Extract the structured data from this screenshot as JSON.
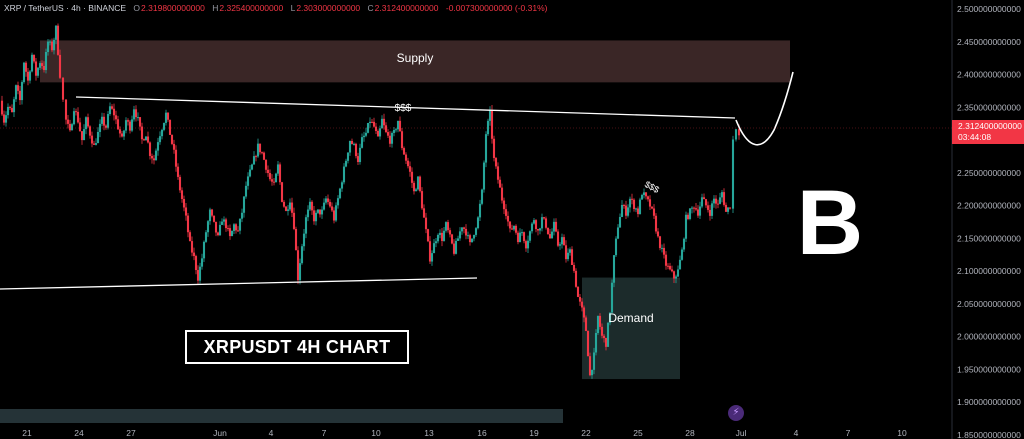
{
  "header": {
    "symbol": "XRP / TetherUS · 4h · BINANCE",
    "open_label": "O",
    "open": "2.319800000000",
    "high_label": "H",
    "high": "2.325400000000",
    "low_label": "L",
    "low": "2.303000000000",
    "close_label": "C",
    "close": "2.312400000000",
    "change": "-0.007300000000 (-0.31%)"
  },
  "price_tag": {
    "price": "2.312400000000",
    "countdown": "03:44:08"
  },
  "labels": {
    "supply": "Supply",
    "demand": "Demand",
    "liquidity_top": "$$$",
    "liquidity_mid": "$$$",
    "chart_title": "XRPUSDT 4H CHART",
    "logo": "B"
  },
  "colors": {
    "up": "#26a69a",
    "down": "#f23645",
    "supply_zone": "#3a2626",
    "demand_zone": "#1c2b2b",
    "background": "#000000"
  },
  "chart_data": {
    "type": "candlestick",
    "symbol": "XRP / TetherUS",
    "timeframe": "4h",
    "exchange": "BINANCE",
    "x_tick_labels": [
      "21",
      "24",
      "27",
      "Jun",
      "4",
      "7",
      "10",
      "13",
      "16",
      "19",
      "22",
      "25",
      "28",
      "Jul",
      "4",
      "7",
      "10"
    ],
    "y_tick_labels": [
      "2.500000000000",
      "2.450000000000",
      "2.400000000000",
      "2.350000000000",
      "2.300000000000",
      "2.250000000000",
      "2.200000000000",
      "2.150000000000",
      "2.100000000000",
      "2.050000000000",
      "2.000000000000",
      "1.950000000000",
      "1.900000000000",
      "1.850000000000"
    ],
    "ylim": [
      1.835,
      2.505
    ],
    "last_price": 2.3124,
    "price_path": [
      [
        0,
        2.36
      ],
      [
        4,
        2.33
      ],
      [
        8,
        2.35
      ],
      [
        12,
        2.34
      ],
      [
        16,
        2.38
      ],
      [
        20,
        2.36
      ],
      [
        24,
        2.42
      ],
      [
        28,
        2.39
      ],
      [
        32,
        2.43
      ],
      [
        36,
        2.4
      ],
      [
        40,
        2.42
      ],
      [
        44,
        2.41
      ],
      [
        48,
        2.45
      ],
      [
        52,
        2.44
      ],
      [
        56,
        2.47
      ],
      [
        60,
        2.4
      ],
      [
        63,
        2.36
      ],
      [
        66,
        2.33
      ],
      [
        70,
        2.31
      ],
      [
        74,
        2.35
      ],
      [
        78,
        2.33
      ],
      [
        82,
        2.3
      ],
      [
        86,
        2.33
      ],
      [
        90,
        2.31
      ],
      [
        94,
        2.29
      ],
      [
        98,
        2.31
      ],
      [
        102,
        2.33
      ],
      [
        106,
        2.32
      ],
      [
        110,
        2.35
      ],
      [
        114,
        2.34
      ],
      [
        118,
        2.32
      ],
      [
        122,
        2.3
      ],
      [
        126,
        2.33
      ],
      [
        130,
        2.32
      ],
      [
        134,
        2.35
      ],
      [
        138,
        2.33
      ],
      [
        142,
        2.3
      ],
      [
        146,
        2.31
      ],
      [
        150,
        2.28
      ],
      [
        154,
        2.27
      ],
      [
        158,
        2.3
      ],
      [
        162,
        2.32
      ],
      [
        166,
        2.34
      ],
      [
        170,
        2.31
      ],
      [
        174,
        2.28
      ],
      [
        178,
        2.24
      ],
      [
        182,
        2.21
      ],
      [
        186,
        2.18
      ],
      [
        190,
        2.14
      ],
      [
        194,
        2.12
      ],
      [
        198,
        2.09
      ],
      [
        202,
        2.12
      ],
      [
        206,
        2.16
      ],
      [
        210,
        2.19
      ],
      [
        214,
        2.17
      ],
      [
        218,
        2.15
      ],
      [
        222,
        2.18
      ],
      [
        226,
        2.17
      ],
      [
        230,
        2.15
      ],
      [
        234,
        2.17
      ],
      [
        238,
        2.16
      ],
      [
        242,
        2.19
      ],
      [
        246,
        2.23
      ],
      [
        250,
        2.25
      ],
      [
        254,
        2.27
      ],
      [
        258,
        2.29
      ],
      [
        262,
        2.28
      ],
      [
        266,
        2.26
      ],
      [
        270,
        2.24
      ],
      [
        274,
        2.23
      ],
      [
        278,
        2.26
      ],
      [
        282,
        2.21
      ],
      [
        286,
        2.19
      ],
      [
        290,
        2.21
      ],
      [
        294,
        2.17
      ],
      [
        298,
        2.09
      ],
      [
        302,
        2.14
      ],
      [
        306,
        2.18
      ],
      [
        310,
        2.2
      ],
      [
        314,
        2.18
      ],
      [
        318,
        2.19
      ],
      [
        322,
        2.19
      ],
      [
        326,
        2.21
      ],
      [
        330,
        2.2
      ],
      [
        334,
        2.18
      ],
      [
        338,
        2.21
      ],
      [
        342,
        2.24
      ],
      [
        346,
        2.27
      ],
      [
        350,
        2.3
      ],
      [
        354,
        2.29
      ],
      [
        358,
        2.27
      ],
      [
        362,
        2.3
      ],
      [
        366,
        2.31
      ],
      [
        370,
        2.33
      ],
      [
        374,
        2.32
      ],
      [
        378,
        2.3
      ],
      [
        382,
        2.33
      ],
      [
        386,
        2.31
      ],
      [
        390,
        2.3
      ],
      [
        394,
        2.31
      ],
      [
        398,
        2.33
      ],
      [
        402,
        2.29
      ],
      [
        406,
        2.27
      ],
      [
        410,
        2.25
      ],
      [
        414,
        2.22
      ],
      [
        418,
        2.24
      ],
      [
        422,
        2.2
      ],
      [
        426,
        2.16
      ],
      [
        430,
        2.12
      ],
      [
        434,
        2.14
      ],
      [
        438,
        2.16
      ],
      [
        442,
        2.15
      ],
      [
        446,
        2.17
      ],
      [
        450,
        2.15
      ],
      [
        454,
        2.13
      ],
      [
        458,
        2.15
      ],
      [
        462,
        2.17
      ],
      [
        466,
        2.16
      ],
      [
        470,
        2.14
      ],
      [
        474,
        2.16
      ],
      [
        478,
        2.18
      ],
      [
        482,
        2.22
      ],
      [
        486,
        2.31
      ],
      [
        490,
        2.34
      ],
      [
        494,
        2.27
      ],
      [
        498,
        2.24
      ],
      [
        502,
        2.21
      ],
      [
        506,
        2.19
      ],
      [
        510,
        2.16
      ],
      [
        514,
        2.17
      ],
      [
        518,
        2.15
      ],
      [
        522,
        2.16
      ],
      [
        526,
        2.14
      ],
      [
        530,
        2.16
      ],
      [
        534,
        2.18
      ],
      [
        538,
        2.16
      ],
      [
        542,
        2.18
      ],
      [
        546,
        2.17
      ],
      [
        550,
        2.15
      ],
      [
        554,
        2.17
      ],
      [
        558,
        2.14
      ],
      [
        562,
        2.15
      ],
      [
        566,
        2.12
      ],
      [
        570,
        2.13
      ],
      [
        574,
        2.1
      ],
      [
        578,
        2.06
      ],
      [
        582,
        2.04
      ],
      [
        586,
        2.01
      ],
      [
        590,
        1.94
      ],
      [
        594,
        1.97
      ],
      [
        598,
        2.03
      ],
      [
        602,
        2.0
      ],
      [
        606,
        1.99
      ],
      [
        610,
        2.04
      ],
      [
        614,
        2.12
      ],
      [
        618,
        2.17
      ],
      [
        622,
        2.2
      ],
      [
        626,
        2.19
      ],
      [
        630,
        2.21
      ],
      [
        634,
        2.2
      ],
      [
        638,
        2.19
      ],
      [
        642,
        2.22
      ],
      [
        646,
        2.21
      ],
      [
        650,
        2.2
      ],
      [
        654,
        2.18
      ],
      [
        658,
        2.15
      ],
      [
        662,
        2.13
      ],
      [
        666,
        2.11
      ],
      [
        670,
        2.1
      ],
      [
        674,
        2.09
      ],
      [
        678,
        2.1
      ],
      [
        682,
        2.13
      ],
      [
        686,
        2.18
      ],
      [
        690,
        2.19
      ],
      [
        694,
        2.2
      ],
      [
        698,
        2.19
      ],
      [
        702,
        2.21
      ],
      [
        706,
        2.2
      ],
      [
        710,
        2.19
      ],
      [
        714,
        2.21
      ],
      [
        718,
        2.2
      ],
      [
        722,
        2.22
      ],
      [
        726,
        2.19
      ],
      [
        730,
        2.2
      ],
      [
        733,
        2.3
      ],
      [
        736,
        2.32
      ],
      [
        739,
        2.3124
      ]
    ],
    "supply_zone": {
      "price_low": 2.388,
      "price_high": 2.452,
      "label": "Supply"
    },
    "demand_zone": {
      "price_low": 1.935,
      "price_high": 2.09,
      "label": "Demand"
    }
  }
}
